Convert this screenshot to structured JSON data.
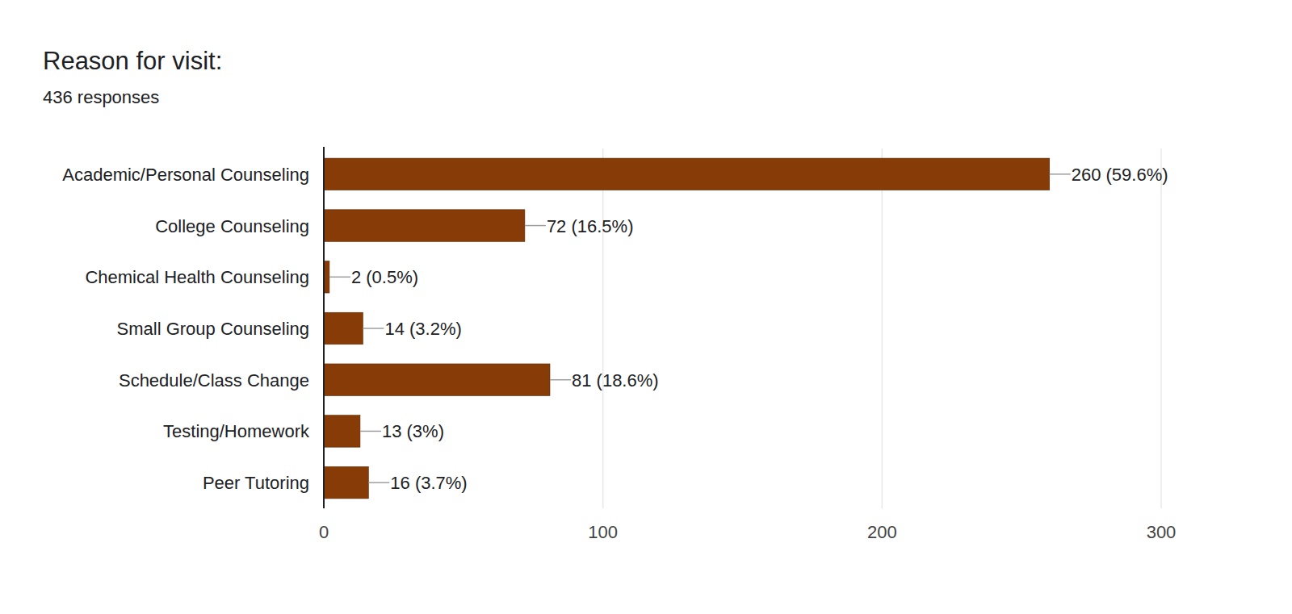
{
  "chart_data": {
    "type": "bar",
    "orientation": "horizontal",
    "title": "Reason for visit:",
    "subtitle": "436 responses",
    "categories": [
      "Academic/Personal Counseling",
      "College Counseling",
      "Chemical Health Counseling",
      "Small Group Counseling",
      "Schedule/Class Change",
      "Testing/Homework",
      "Peer Tutoring"
    ],
    "values": [
      260,
      72,
      2,
      14,
      81,
      13,
      16
    ],
    "value_labels": [
      "260 (59.6%)",
      "72 (16.5%)",
      "2 (0.5%)",
      "14 (3.2%)",
      "81 (18.6%)",
      "13 (3%)",
      "16 (3.7%)"
    ],
    "color": "#873c07",
    "data_labels": true,
    "xlim": [
      0,
      300
    ],
    "xticks": [
      0,
      100,
      200,
      300
    ],
    "grid": true
  }
}
